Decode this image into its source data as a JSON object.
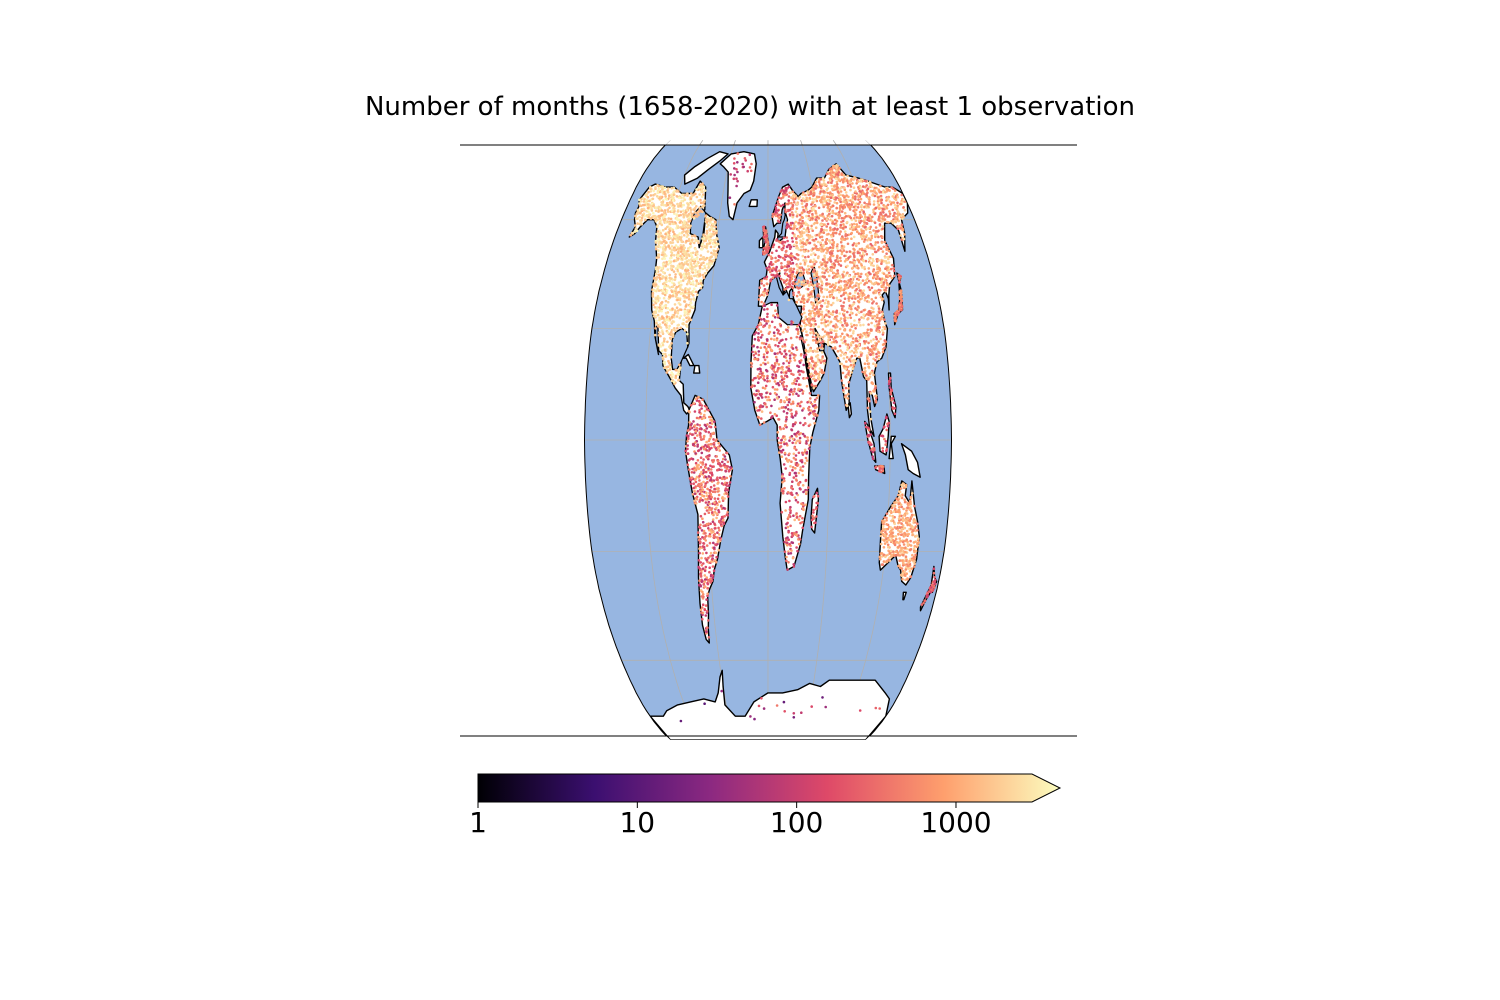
{
  "title": "Number of months (1658-2020) with at least 1 observation",
  "colors": {
    "ocean": "#97b6e1",
    "land": "#ffffff",
    "coastline": "#000000",
    "graticule": "#b0b0b0",
    "colormap": [
      "#000004",
      "#3b0f70",
      "#8c2981",
      "#de4968",
      "#fe9f6d",
      "#fcfdbf"
    ]
  },
  "projection": "Robinson",
  "colorbar": {
    "scale": "log",
    "range": [
      1,
      3000
    ],
    "extend": "max",
    "ticks": [
      {
        "value": 1,
        "label": "1"
      },
      {
        "value": 10,
        "label": "10"
      },
      {
        "value": 100,
        "label": "100"
      },
      {
        "value": 1000,
        "label": "1000"
      }
    ]
  }
}
